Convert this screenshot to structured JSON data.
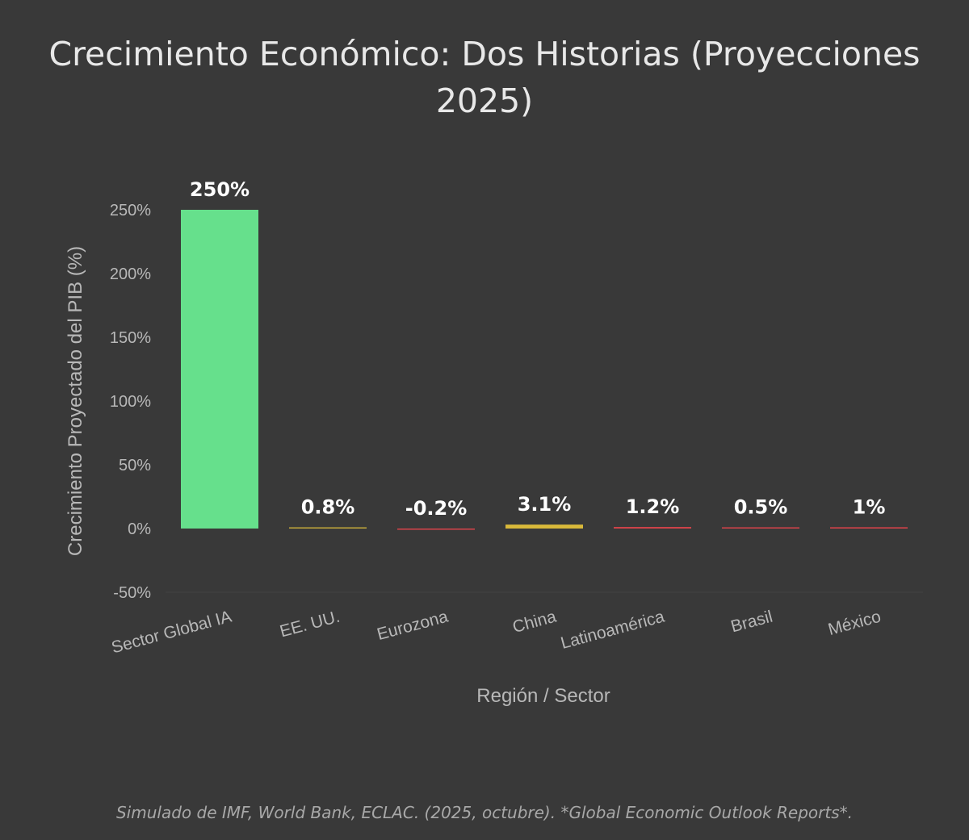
{
  "chart_data": {
    "type": "bar",
    "title": "Crecimiento Económico: Dos Historias (Proyecciones 2025)",
    "xlabel": "Región / Sector",
    "ylabel": "Crecimiento Proyectado del PIB (%)",
    "categories": [
      "Sector Global IA",
      "EE. UU.",
      "Eurozona",
      "China",
      "Latinoamérica",
      "Brasil",
      "México"
    ],
    "values": [
      250,
      0.8,
      -0.2,
      3.1,
      1.2,
      0.5,
      1
    ],
    "data_labels": [
      "250%",
      "0.8%",
      "-0.2%",
      "3.1%",
      "1.2%",
      "0.5%",
      "1%"
    ],
    "bar_colors": [
      "#66e08c",
      "#c4a93a",
      "#d9434a",
      "#d9b93a",
      "#d9434a",
      "#d9434a",
      "#d9434a"
    ],
    "ylim": [
      -50,
      260
    ],
    "yticks": [
      -50,
      0,
      50,
      100,
      150,
      200,
      250
    ],
    "ytick_labels": [
      "-50%",
      "0%",
      "50%",
      "100%",
      "150%",
      "200%",
      "250%"
    ],
    "grid": false,
    "legend": "none"
  },
  "caption": "Simulado de IMF, World Bank, ECLAC. (2025, octubre). *Global Economic Outlook Reports*.",
  "colors": {
    "background": "#393939",
    "text": "#e8e8e8",
    "axis_text": "#b8b8b8"
  }
}
